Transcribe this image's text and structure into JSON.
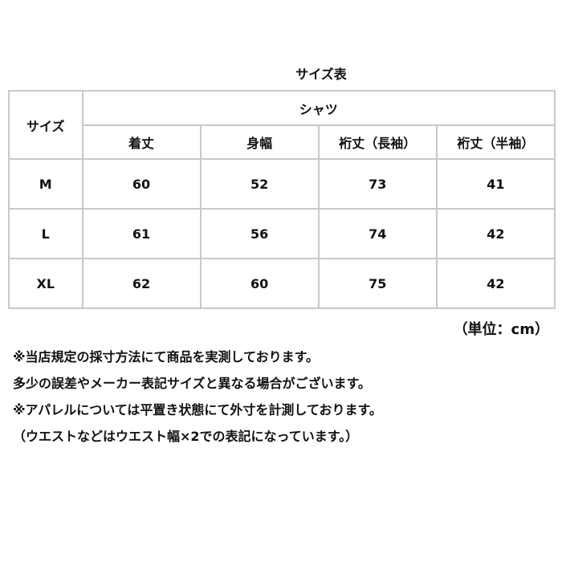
{
  "title": "サイズ表",
  "table": {
    "size_header": "サイズ",
    "group_header": "シャツ",
    "columns": [
      "着丈",
      "身幅",
      "裄丈（長袖）",
      "裄丈（半袖）"
    ],
    "rows": [
      {
        "size": "M",
        "values": [
          "60",
          "52",
          "73",
          "41"
        ]
      },
      {
        "size": "L",
        "values": [
          "61",
          "56",
          "74",
          "42"
        ]
      },
      {
        "size": "XL",
        "values": [
          "62",
          "60",
          "75",
          "42"
        ]
      }
    ]
  },
  "unit": "（単位：cm）",
  "notes": [
    "※当店規定の採寸方法にて商品を実測しております。",
    "多少の誤差やメーカー表記サイズと異なる場合がございます。",
    "※アパレルについては平置き状態にて外寸を計測しております。",
    "（ウエストなどはウエスト幅×2での表記になっています。）"
  ]
}
